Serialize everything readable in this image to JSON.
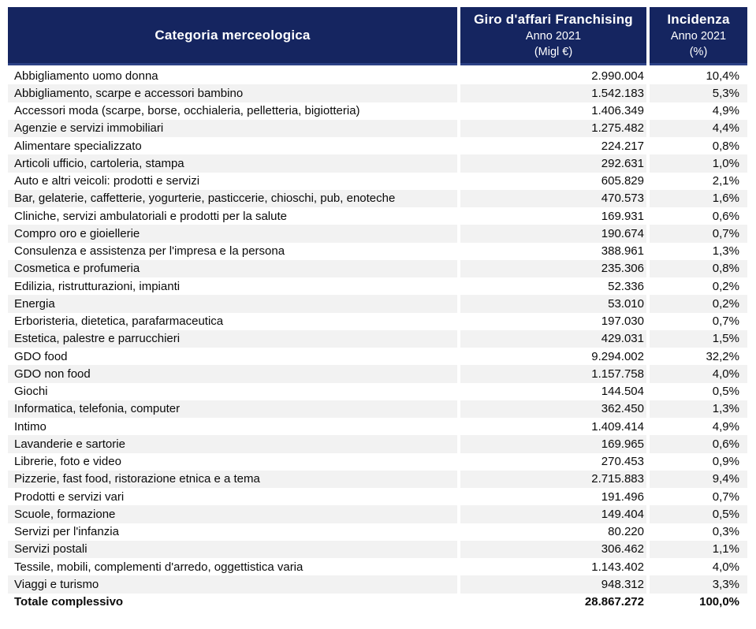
{
  "colors": {
    "header_bg": "#152560",
    "header_border": "#2c4185",
    "header_text": "#ffffff",
    "stripe_bg": "#f2f2f2",
    "row_bg": "#ffffff",
    "body_text": "#0a0a0a"
  },
  "header": {
    "col1": {
      "title": "Categoria merceologica"
    },
    "col2": {
      "title": "Giro d'affari Franchising",
      "subtitle": "Anno 2021",
      "unit": "(Migl €)"
    },
    "col3": {
      "title": "Incidenza",
      "subtitle": "Anno 2021",
      "unit": "(%)"
    }
  },
  "chart_data": {
    "type": "table",
    "columns": [
      "Categoria merceologica",
      "Giro d'affari Franchising Anno 2021 (Migl €)",
      "Incidenza Anno 2021 (%)"
    ],
    "rows": [
      [
        "Abbigliamento uomo donna",
        "2.990.004",
        "10,4%"
      ],
      [
        "Abbigliamento, scarpe e accessori bambino",
        "1.542.183",
        "5,3%"
      ],
      [
        "Accessori moda (scarpe, borse, occhialeria, pelletteria, bigiotteria)",
        "1.406.349",
        "4,9%"
      ],
      [
        "Agenzie e servizi immobiliari",
        "1.275.482",
        "4,4%"
      ],
      [
        "Alimentare specializzato",
        "224.217",
        "0,8%"
      ],
      [
        "Articoli ufficio, cartoleria, stampa",
        "292.631",
        "1,0%"
      ],
      [
        "Auto e altri veicoli: prodotti e servizi",
        "605.829",
        "2,1%"
      ],
      [
        "Bar, gelaterie, caffetterie, yogurterie, pasticcerie, chioschi, pub, enoteche",
        "470.573",
        "1,6%"
      ],
      [
        "Cliniche, servizi ambulatoriali e prodotti per la salute",
        "169.931",
        "0,6%"
      ],
      [
        "Compro oro e gioiellerie",
        "190.674",
        "0,7%"
      ],
      [
        "Consulenza e assistenza per l'impresa e la persona",
        "388.961",
        "1,3%"
      ],
      [
        "Cosmetica e profumeria",
        "235.306",
        "0,8%"
      ],
      [
        "Edilizia, ristrutturazioni, impianti",
        "52.336",
        "0,2%"
      ],
      [
        "Energia",
        "53.010",
        "0,2%"
      ],
      [
        "Erboristeria, dietetica, parafarmaceutica",
        "197.030",
        "0,7%"
      ],
      [
        "Estetica, palestre e parrucchieri",
        "429.031",
        "1,5%"
      ],
      [
        "GDO food",
        "9.294.002",
        "32,2%"
      ],
      [
        "GDO non food",
        "1.157.758",
        "4,0%"
      ],
      [
        "Giochi",
        "144.504",
        "0,5%"
      ],
      [
        "Informatica, telefonia, computer",
        "362.450",
        "1,3%"
      ],
      [
        "Intimo",
        "1.409.414",
        "4,9%"
      ],
      [
        "Lavanderie e sartorie",
        "169.965",
        "0,6%"
      ],
      [
        "Librerie, foto e video",
        "270.453",
        "0,9%"
      ],
      [
        "Pizzerie, fast food, ristorazione etnica e a tema",
        "2.715.883",
        "9,4%"
      ],
      [
        "Prodotti e servizi vari",
        "191.496",
        "0,7%"
      ],
      [
        "Scuole, formazione",
        "149.404",
        "0,5%"
      ],
      [
        "Servizi per l'infanzia",
        "80.220",
        "0,3%"
      ],
      [
        "Servizi postali",
        "306.462",
        "1,1%"
      ],
      [
        "Tessile, mobili, complementi d'arredo, oggettistica varia",
        "1.143.402",
        "4,0%"
      ],
      [
        "Viaggi e turismo",
        "948.312",
        "3,3%"
      ]
    ],
    "total_row": [
      "Totale complessivo",
      "28.867.272",
      "100,0%"
    ],
    "values_migl_eur": [
      2990004,
      1542183,
      1406349,
      1275482,
      224217,
      292631,
      605829,
      470573,
      169931,
      190674,
      388961,
      235306,
      52336,
      53010,
      197030,
      429031,
      9294002,
      1157758,
      144504,
      362450,
      1409414,
      169965,
      270453,
      2715883,
      191496,
      149404,
      80220,
      306462,
      1143402,
      948312
    ],
    "incidenza_pct": [
      10.4,
      5.3,
      4.9,
      4.4,
      0.8,
      1.0,
      2.1,
      1.6,
      0.6,
      0.7,
      1.3,
      0.8,
      0.2,
      0.2,
      0.7,
      1.5,
      32.2,
      4.0,
      0.5,
      1.3,
      4.9,
      0.6,
      0.9,
      9.4,
      0.7,
      0.5,
      0.3,
      1.1,
      4.0,
      3.3
    ],
    "total_value_migl_eur": 28867272,
    "total_incidenza_pct": 100.0
  }
}
